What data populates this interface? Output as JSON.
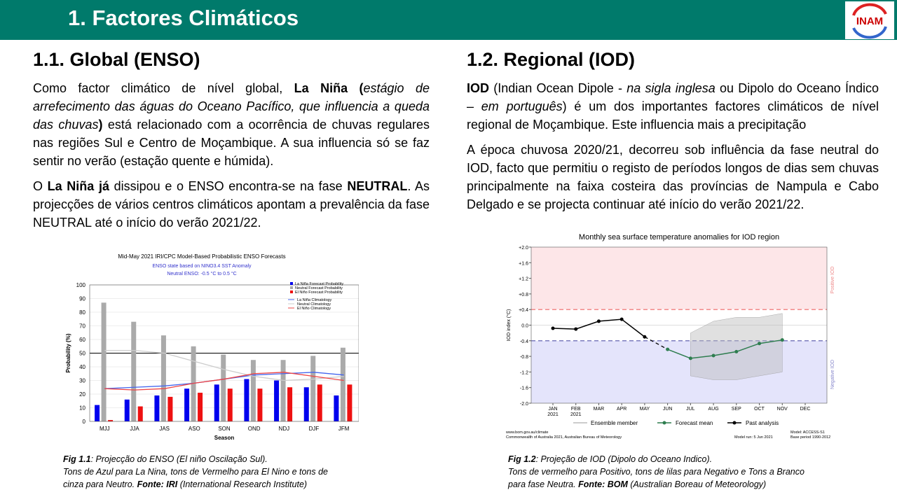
{
  "header": {
    "title": "1. Factores Climáticos",
    "logo": "INAM"
  },
  "left": {
    "heading": "1.1.  Global (ENSO)",
    "paragraphs": [
      [
        {
          "t": "Como factor climático de nível global, "
        },
        {
          "t": "La Niña (",
          "b": true
        },
        {
          "t": "estágio de arrefecimento das águas do Oceano Pacífico, que influencia a queda das chuvas",
          "i": true
        },
        {
          "t": ")",
          "b": true
        },
        {
          "t": " está relacionado com a ocorrência de chuvas regulares nas regiões Sul e Centro de Moçambique. A sua influencia só se faz sentir no verão (estação quente e húmida)."
        }
      ],
      [
        {
          "t": "O "
        },
        {
          "t": "La Niña já",
          "b": true
        },
        {
          "t": " dissipou e o ENSO encontra-se na fase "
        },
        {
          "t": "NEUTRAL",
          "b": true
        },
        {
          "t": ". As projecções de vários centros climáticos apontam a prevalência da fase NEUTRAL até o início do verão 2021/22."
        }
      ]
    ],
    "caption": [
      [
        {
          "t": "Fig 1.1",
          "b": true
        },
        {
          "t": ": Projecção do ENSO (El niño Oscilação Sul)."
        }
      ],
      [
        {
          "t": "Tons de Azul para La Nina, tons de Vermelho para El Nino e tons de"
        }
      ],
      [
        {
          "t": "cinza para Neutro. "
        },
        {
          "t": "Fonte: IRI",
          "b": true
        },
        {
          "t": " (International Research Institute)"
        }
      ]
    ]
  },
  "right": {
    "heading": "1.2. Regional (IOD)",
    "paragraphs": [
      [
        {
          "t": "IOD",
          "b": true
        },
        {
          "t": " (Indian Ocean Dipole - "
        },
        {
          "t": "na sigla inglesa",
          "i": true
        },
        {
          "t": " ou Dipolo do Oceano Índico – "
        },
        {
          "t": "em português",
          "i": true
        },
        {
          "t": ") é um dos importantes factores climáticos de nível regional de Moçambique. Este influencia mais a precipitação"
        }
      ],
      [
        {
          "t": "A época chuvosa 2020/21, decorreu sob influência da fase neutral do IOD, facto que permitiu o registo de períodos longos de dias sem chuvas principalmente na faixa costeira das províncias de Nampula e Cabo Delgado e se projecta continuar até início do verão 2021/22."
        }
      ]
    ],
    "caption": [
      [
        {
          "t": "Fig 1.2",
          "b": true
        },
        {
          "t": ": Projeção de IOD (Dipolo do Oceano Indico)."
        }
      ],
      [
        {
          "t": "Tons de vermelho para Positivo, tons de lilas para Negativo e Tons a Branco"
        }
      ],
      [
        {
          "t": "para fase Neutra. "
        },
        {
          "t": "Fonte: BOM",
          "b": true
        },
        {
          "t": " (Australian Boreau of Meteorology)"
        }
      ]
    ]
  },
  "chart_data": [
    {
      "type": "bar",
      "title": "Mid-May 2021 IRI/CPC Model-Based Probabilistic ENSO Forecasts",
      "subtitle": "ENSO state based on NINO3.4 SST Anomaly",
      "note": "Neutral ENSO: -0.5 °C to 0.5 °C",
      "xlabel": "Season",
      "ylabel": "Probability (%)",
      "categories": [
        "MJJ",
        "JJA",
        "JAS",
        "ASO",
        "SON",
        "OND",
        "NDJ",
        "DJF",
        "JFM"
      ],
      "series": [
        {
          "name": "La Niña Forecast Probability",
          "color": "#0000ee",
          "values": [
            12,
            16,
            19,
            24,
            27,
            31,
            30,
            25,
            19
          ]
        },
        {
          "name": "Neutral Forecast Probability",
          "color": "#aaaaaa",
          "values": [
            87,
            73,
            63,
            55,
            49,
            45,
            45,
            48,
            54
          ]
        },
        {
          "name": "El Niño Forecast Probability",
          "color": "#ee1111",
          "values": [
            1,
            11,
            18,
            21,
            24,
            24,
            25,
            27,
            27
          ]
        }
      ],
      "lines": [
        {
          "name": "La Niña Climatology",
          "color": "#4466ee",
          "values": [
            24,
            25,
            26,
            28,
            31,
            34,
            35,
            36,
            34
          ]
        },
        {
          "name": "Neutral Climatology",
          "color": "#cccccc",
          "values": [
            52,
            52,
            50,
            44,
            38,
            33,
            30,
            31,
            33
          ]
        },
        {
          "name": "El Niño Climatology",
          "color": "#ee4444",
          "values": [
            24,
            23,
            24,
            28,
            31,
            35,
            36,
            33,
            30
          ]
        }
      ],
      "reference": 50,
      "ylim": [
        0,
        100
      ],
      "yticks": [
        0,
        10,
        20,
        30,
        40,
        50,
        60,
        70,
        80,
        90,
        100
      ],
      "grid": true
    },
    {
      "type": "line",
      "title": "Monthly sea surface temperature anomalies for IOD region",
      "ylabel": "IOD index (°C)",
      "categories": [
        "JAN",
        "FEB",
        "MAR",
        "APR",
        "MAY",
        "JUN",
        "JUL",
        "AUG",
        "SEP",
        "OCT",
        "NOV",
        "DEC"
      ],
      "category_years": [
        "2021",
        "2021"
      ],
      "series": [
        {
          "name": "Past analysis",
          "color": "#000000",
          "values": [
            -0.08,
            -0.1,
            0.1,
            0.15,
            -0.3,
            null,
            null,
            null,
            null,
            null,
            null,
            null
          ]
        },
        {
          "name": "Forecast mean",
          "color": "#2e7d4f",
          "values": [
            null,
            null,
            null,
            null,
            null,
            -0.62,
            -0.85,
            -0.78,
            -0.68,
            -0.47,
            -0.38,
            null
          ]
        }
      ],
      "ensemble": {
        "name": "Ensemble member",
        "color": "#bbbbbb",
        "min": [
          null,
          null,
          null,
          null,
          null,
          null,
          -1.3,
          -1.4,
          -1.4,
          -1.3,
          -1.2,
          null
        ],
        "max": [
          null,
          null,
          null,
          null,
          null,
          null,
          -0.2,
          0.1,
          0.2,
          0.2,
          0.3,
          null
        ]
      },
      "positive_threshold": 0.4,
      "negative_threshold": -0.4,
      "positive_label": "Positive IOD",
      "negative_label": "Negative IOD",
      "ylim": [
        -2,
        2
      ],
      "yticks": [
        {
          "value": -2,
          "label": "-2.0"
        },
        {
          "value": -1.6,
          "label": "-1.6"
        },
        {
          "value": -1.2,
          "label": "-1.2"
        },
        {
          "value": -0.8,
          "label": "-0.8"
        },
        {
          "value": -0.4,
          "label": "-0.4"
        },
        {
          "value": 0,
          "label": "0.0"
        },
        {
          "value": 0.4,
          "label": "+0.4"
        },
        {
          "value": 0.8,
          "label": "+0.8"
        },
        {
          "value": 1.2,
          "label": "+1.2"
        },
        {
          "value": 1.6,
          "label": "+1.6"
        },
        {
          "value": 2,
          "label": "+2.0"
        }
      ],
      "footer": [
        "www.bom.gov.au/climate",
        "Commonwealth of Australia 2021, Australian Bureau of Meteorology",
        "Model: ACCESS-S1",
        "Model run: 5 Jun 2021",
        "Base period 1990-2012"
      ]
    }
  ]
}
